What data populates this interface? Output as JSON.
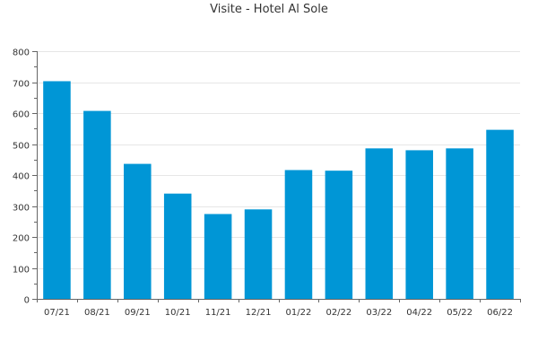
{
  "chart_data": {
    "type": "bar",
    "title": "Visite - Hotel Al Sole",
    "xlabel": "",
    "ylabel": "",
    "categories": [
      "07/21",
      "08/21",
      "09/21",
      "10/21",
      "11/21",
      "12/21",
      "01/22",
      "02/22",
      "03/22",
      "04/22",
      "05/22",
      "06/22"
    ],
    "values": [
      703,
      607,
      436,
      340,
      274,
      289,
      416,
      414,
      486,
      480,
      486,
      546
    ],
    "ylim": [
      0,
      800
    ],
    "yticks": [
      0,
      100,
      200,
      300,
      400,
      500,
      600,
      700,
      800
    ],
    "grid": true,
    "legend": "none",
    "colors": {
      "bar": "#0096D6",
      "grid": "#E6E6E6",
      "axis": "#666666",
      "text": "#333333"
    }
  }
}
